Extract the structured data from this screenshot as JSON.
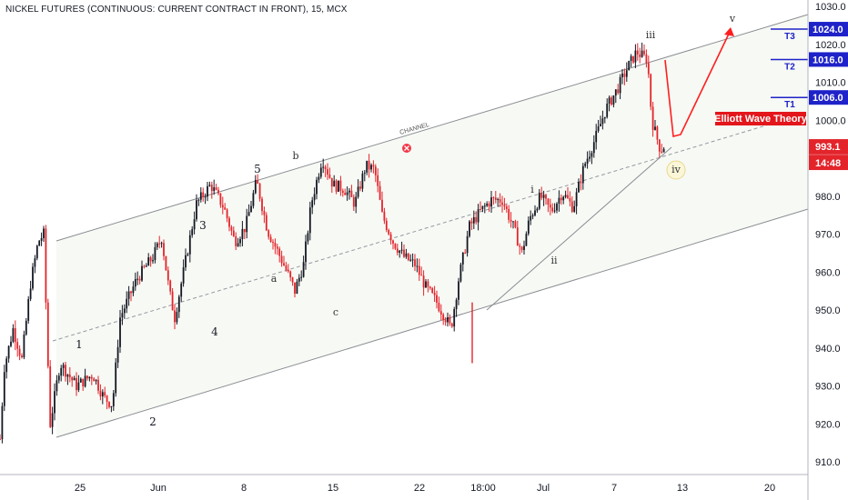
{
  "header": {
    "title": "NICKEL FUTURES (CONTINUOUS: CURRENT CONTRACT IN FRONT), 15, MCX"
  },
  "colors": {
    "up": "#131722",
    "down": "#e3242b",
    "channel_fill": "#f7f9f4",
    "channel_line": "#8a8d93",
    "target_blue": "#1e22c8",
    "projection": "#ff1e1e",
    "current_tag": "#e3242b"
  },
  "chart_data": {
    "type": "candlestick",
    "title": "NICKEL FUTURES (CONTINUOUS: CURRENT CONTRACT IN FRONT), 15, MCX",
    "y_ticks": [
      910,
      920,
      930,
      940,
      950,
      960,
      970,
      980,
      990,
      1000,
      1010,
      1020,
      1030
    ],
    "ylim": [
      905,
      1032
    ],
    "x_ticks": [
      "25",
      "Jun",
      "8",
      "15",
      "22",
      "18:00",
      "Jul",
      "7",
      "13",
      "20"
    ],
    "price_path": [
      {
        "t": 0,
        "price": 916
      },
      {
        "t": 0.4,
        "price": 935
      },
      {
        "t": 1.2,
        "price": 945
      },
      {
        "t": 2.0,
        "price": 937
      },
      {
        "t": 2.8,
        "price": 957
      },
      {
        "t": 3.5,
        "price": 968
      },
      {
        "t": 4.0,
        "price": 970
      },
      {
        "t": 4.3,
        "price": 943
      },
      {
        "t": 4.6,
        "price": 920
      },
      {
        "t": 5.5,
        "price": 936
      },
      {
        "t": 7.0,
        "price": 930
      },
      {
        "t": 8.5,
        "price": 933
      },
      {
        "t": 9.5,
        "price": 927
      },
      {
        "t": 10.3,
        "price": 925
      },
      {
        "t": 11.0,
        "price": 948
      },
      {
        "t": 12.5,
        "price": 958
      },
      {
        "t": 14.0,
        "price": 964
      },
      {
        "t": 14.8,
        "price": 969
      },
      {
        "t": 15.5,
        "price": 955
      },
      {
        "t": 16.0,
        "price": 948
      },
      {
        "t": 17.0,
        "price": 963
      },
      {
        "t": 18.0,
        "price": 978
      },
      {
        "t": 19.3,
        "price": 983
      },
      {
        "t": 20.5,
        "price": 977
      },
      {
        "t": 21.5,
        "price": 968
      },
      {
        "t": 22.5,
        "price": 972
      },
      {
        "t": 23.5,
        "price": 984
      },
      {
        "t": 24.5,
        "price": 971
      },
      {
        "t": 25.5,
        "price": 965
      },
      {
        "t": 26.3,
        "price": 960
      },
      {
        "t": 27.0,
        "price": 955
      },
      {
        "t": 27.8,
        "price": 962
      },
      {
        "t": 28.5,
        "price": 978
      },
      {
        "t": 29.5,
        "price": 990
      },
      {
        "t": 30.5,
        "price": 983
      },
      {
        "t": 31.5,
        "price": 982
      },
      {
        "t": 32.5,
        "price": 978
      },
      {
        "t": 33.5,
        "price": 988
      },
      {
        "t": 34.3,
        "price": 987
      },
      {
        "t": 35.0,
        "price": 975
      },
      {
        "t": 36.0,
        "price": 968
      },
      {
        "t": 37.0,
        "price": 964
      },
      {
        "t": 38.0,
        "price": 962
      },
      {
        "t": 39.0,
        "price": 956
      },
      {
        "t": 40.0,
        "price": 952
      },
      {
        "t": 40.8,
        "price": 948
      },
      {
        "t": 41.3,
        "price": 945
      },
      {
        "t": 42.0,
        "price": 958
      },
      {
        "t": 43.0,
        "price": 972
      },
      {
        "t": 44.0,
        "price": 976
      },
      {
        "t": 45.0,
        "price": 979
      },
      {
        "t": 46.0,
        "price": 979
      },
      {
        "t": 47.0,
        "price": 972
      },
      {
        "t": 47.8,
        "price": 965
      },
      {
        "t": 48.5,
        "price": 974
      },
      {
        "t": 49.5,
        "price": 980
      },
      {
        "t": 50.5,
        "price": 976
      },
      {
        "t": 51.5,
        "price": 981
      },
      {
        "t": 52.5,
        "price": 977
      },
      {
        "t": 53.5,
        "price": 988
      },
      {
        "t": 54.5,
        "price": 995
      },
      {
        "t": 55.5,
        "price": 1003
      },
      {
        "t": 56.5,
        "price": 1008
      },
      {
        "t": 57.5,
        "price": 1014
      },
      {
        "t": 58.3,
        "price": 1018
      },
      {
        "t": 58.8,
        "price": 1017
      },
      {
        "t": 59.3,
        "price": 1016
      },
      {
        "t": 59.7,
        "price": 1000
      },
      {
        "t": 60.1,
        "price": 996
      },
      {
        "t": 60.5,
        "price": 992
      },
      {
        "t": 60.8,
        "price": 993.1
      }
    ],
    "wave_labels": [
      {
        "label": "1",
        "price": 940
      },
      {
        "label": "2",
        "price": 920
      },
      {
        "label": "3",
        "price": 972
      },
      {
        "label": "4",
        "price": 945
      },
      {
        "label": "5",
        "price": 985
      },
      {
        "label": "a",
        "price": 960
      },
      {
        "label": "b",
        "price": 988
      },
      {
        "label": "c",
        "price": 950
      },
      {
        "label": "i",
        "price": 981
      },
      {
        "label": "ii",
        "price": 962
      },
      {
        "label": "iii",
        "price": 1021
      },
      {
        "label": "iv",
        "price": 987
      },
      {
        "label": "v",
        "price": 1028
      }
    ],
    "channel": {
      "label": "CHANNEL"
    },
    "targets": [
      {
        "name": "T3",
        "price": 1024.0,
        "label": "1024.0"
      },
      {
        "name": "T2",
        "price": 1016.0,
        "label": "1016.0"
      },
      {
        "name": "T1",
        "price": 1006.0,
        "label": "1006.0"
      }
    ],
    "annotation": "Elliott Wave Theory",
    "current_price": {
      "price": 993.1,
      "label": "993.1",
      "countdown": "14:48"
    }
  }
}
